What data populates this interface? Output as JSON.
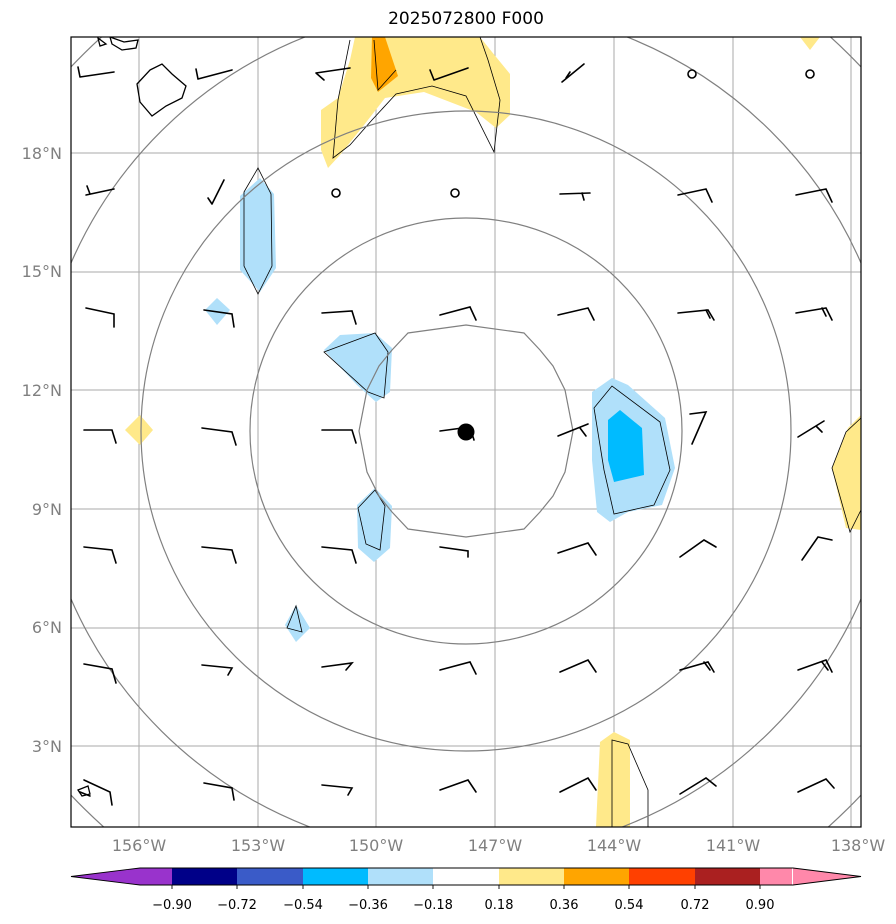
{
  "title": "2025072800 F000",
  "lat_labels": [
    "3°N",
    "6°N",
    "9°N",
    "12°N",
    "15°N",
    "18°N"
  ],
  "lon_labels": [
    "156°W",
    "153°W",
    "150°W",
    "147°W",
    "144°W",
    "141°W",
    "138°W"
  ],
  "colorbar": {
    "tick_labels": [
      "−0.90",
      "−0.72",
      "−0.54",
      "−0.36",
      "−0.18",
      "0.18",
      "0.36",
      "0.54",
      "0.72",
      "0.90"
    ],
    "colors": [
      "#9933cc",
      "#000088",
      "#3a5bc8",
      "#00bbff",
      "#b0e0fa",
      "#ffffff",
      "#ffe98a",
      "#ffa500",
      "#ff4000",
      "#aa2020",
      "#ff88aa"
    ]
  },
  "colors": {
    "light_blue": "#b0e0fa",
    "blue": "#00bbff",
    "light_yellow": "#ffe98a",
    "orange": "#ffa500",
    "grid": "#aaaaaa",
    "rings": "#808080"
  },
  "center": {
    "lat": 11,
    "lon": -147.7
  },
  "map_extent": {
    "lon": [
      -157.6,
      -137.6
    ],
    "lat": [
      1,
      21
    ]
  }
}
